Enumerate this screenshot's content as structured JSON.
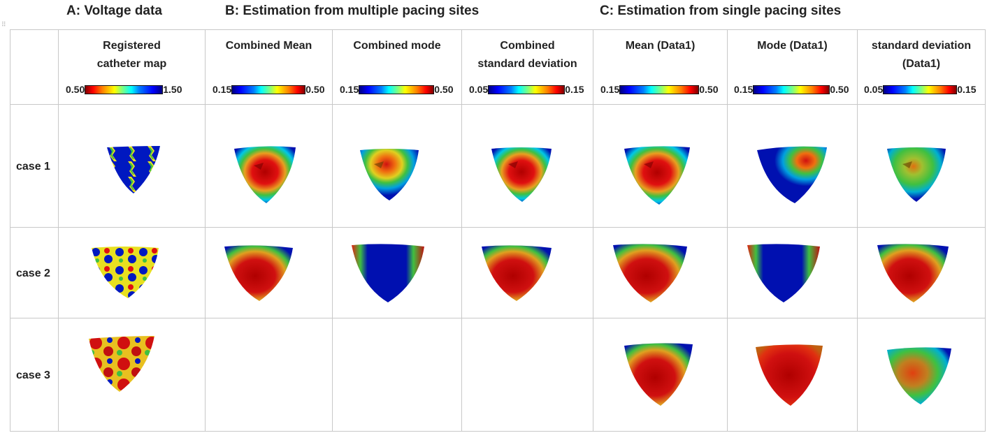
{
  "sections": {
    "a": "A: Voltage data",
    "b": "B: Estimation from multiple pacing sites",
    "c": "C: Estimation from single pacing sites"
  },
  "columns": [
    {
      "title_line1": "Registered",
      "title_line2": "catheter map",
      "scale_min": "0.50",
      "scale_max": "1.50"
    },
    {
      "title_line1": "Combined Mean",
      "title_line2": "",
      "scale_min": "0.15",
      "scale_max": "0.50"
    },
    {
      "title_line1": "Combined mode",
      "title_line2": "",
      "scale_min": "0.15",
      "scale_max": "0.50"
    },
    {
      "title_line1": "Combined",
      "title_line2": "standard deviation",
      "scale_min": "0.05",
      "scale_max": "0.15"
    },
    {
      "title_line1": "Mean (Data1)",
      "title_line2": "",
      "scale_min": "0.15",
      "scale_max": "0.50"
    },
    {
      "title_line1": "Mode (Data1)",
      "title_line2": "",
      "scale_min": "0.15",
      "scale_max": "0.50"
    },
    {
      "title_line1": "standard deviation",
      "title_line2": "(Data1)",
      "scale_min": "0.05",
      "scale_max": "0.15"
    }
  ],
  "rows": [
    "case 1",
    "case 2",
    "case 3"
  ],
  "colors": {
    "grid_line": "#c8c8c8",
    "jet_dark_blue": "#0010b0",
    "jet_cyan": "#00c8e6",
    "jet_green": "#40c040",
    "jet_yellow": "#e8e020",
    "jet_red": "#e01010",
    "jet_dark_red": "#b00000"
  }
}
